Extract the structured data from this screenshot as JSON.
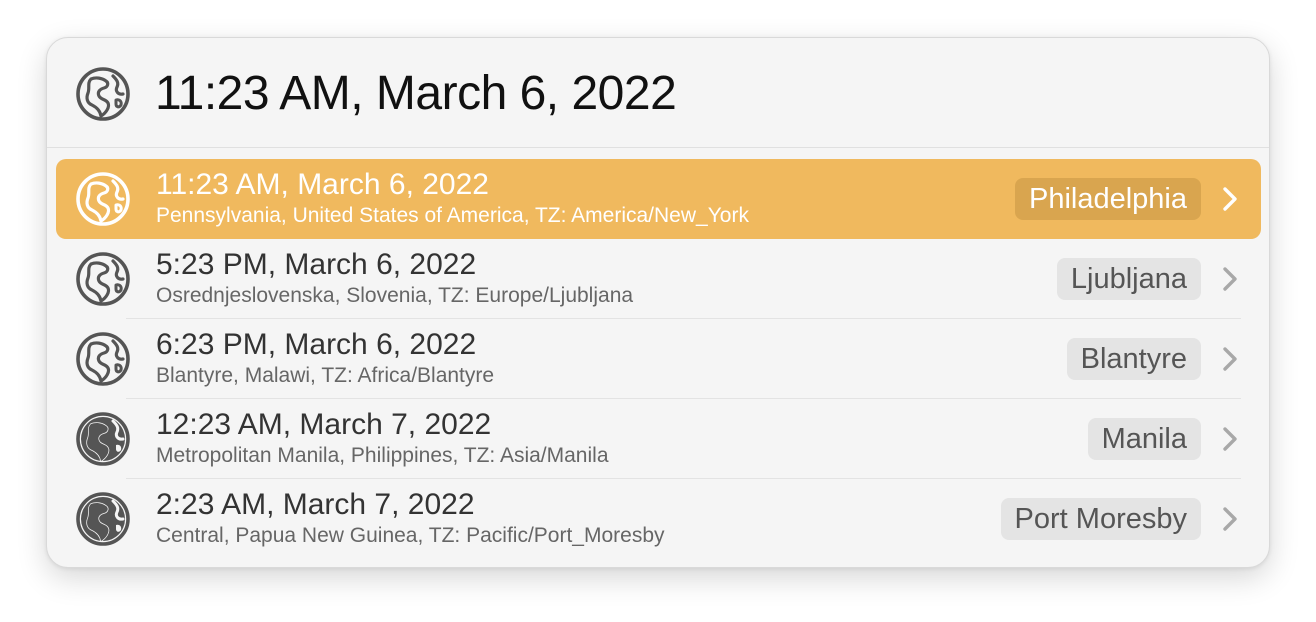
{
  "search": {
    "query": "11:23 AM, March 6, 2022",
    "icon": "globe-outline-icon"
  },
  "results": [
    {
      "title": "11:23 AM, March 6, 2022",
      "subtitle": "Pennsylvania, United States of America, TZ: America/New_York",
      "tag": "Philadelphia",
      "icon": "globe-outline-icon",
      "selected": true
    },
    {
      "title": "5:23 PM, March 6, 2022",
      "subtitle": "Osrednjeslovenska, Slovenia, TZ: Europe/Ljubljana",
      "tag": "Ljubljana",
      "icon": "globe-outline-icon",
      "selected": false
    },
    {
      "title": "6:23 PM, March 6, 2022",
      "subtitle": "Blantyre, Malawi, TZ: Africa/Blantyre",
      "tag": "Blantyre",
      "icon": "globe-outline-icon",
      "selected": false
    },
    {
      "title": "12:23 AM, March 7, 2022",
      "subtitle": "Metropolitan Manila, Philippines, TZ: Asia/Manila",
      "tag": "Manila",
      "icon": "globe-filled-icon",
      "selected": false
    },
    {
      "title": "2:23 AM, March 7, 2022",
      "subtitle": "Central, Papua New Guinea, TZ: Pacific/Port_Moresby",
      "tag": "Port Moresby",
      "icon": "globe-filled-icon",
      "selected": false
    }
  ],
  "colors": {
    "selected_background": "#f0b95e",
    "selected_tag_background": "#d9a54f",
    "tag_background": "#e4e4e4",
    "panel_background": "#f5f5f5"
  }
}
